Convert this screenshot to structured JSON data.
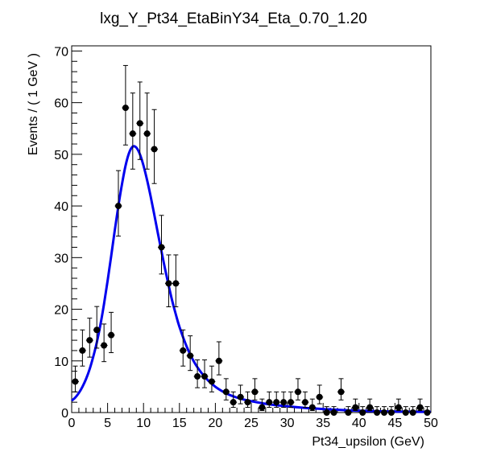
{
  "chart_data": {
    "type": "scatter",
    "title": "lxg_Y_Pt34_EtaBinY34_Eta_0.70_1.20",
    "xlabel": "Pt34_upsilon (GeV)",
    "ylabel": "Events / ( 1 GeV )",
    "xlim": [
      0,
      50
    ],
    "ylim": [
      0,
      71
    ],
    "x_ticks": [
      "0",
      "5",
      "10",
      "15",
      "20",
      "25",
      "30",
      "35",
      "40",
      "45",
      "50"
    ],
    "y_ticks": [
      "0",
      "10",
      "20",
      "30",
      "40",
      "50",
      "60",
      "70"
    ],
    "grid": false,
    "series": [
      {
        "kind": "data-points-with-errors",
        "color": "#000000",
        "x": [
          0.5,
          1.5,
          2.5,
          3.5,
          4.5,
          5.5,
          6.5,
          7.5,
          8.5,
          9.5,
          10.5,
          11.5,
          12.5,
          13.5,
          14.5,
          15.5,
          16.5,
          17.5,
          18.5,
          19.5,
          20.5,
          21.5,
          22.5,
          23.5,
          24.5,
          25.5,
          26.5,
          27.5,
          28.5,
          29.5,
          30.5,
          31.5,
          32.5,
          33.5,
          34.5,
          35.5,
          36.5,
          37.5,
          38.5,
          39.5,
          40.5,
          41.5,
          42.5,
          43.5,
          44.5,
          45.5,
          46.5,
          47.5,
          48.5,
          49.5
        ],
        "y": [
          6,
          12,
          14,
          16,
          13,
          15,
          40,
          59,
          54,
          56,
          54,
          51,
          32,
          25,
          25,
          12,
          11,
          7,
          7,
          6,
          10,
          4,
          2,
          3,
          2,
          4,
          1,
          2,
          2,
          2,
          2,
          4,
          2,
          1,
          3,
          0,
          0,
          4,
          0,
          1,
          0,
          1,
          0,
          0,
          0,
          1,
          0,
          0,
          1,
          0
        ]
      },
      {
        "kind": "fit-curve",
        "color": "#0000ee",
        "x": [
          0,
          0.5,
          1,
          1.5,
          2,
          2.5,
          3,
          3.5,
          4,
          4.5,
          5,
          5.5,
          6,
          6.5,
          7,
          7.5,
          8,
          8.5,
          9,
          9.5,
          10,
          10.5,
          11,
          11.5,
          12,
          12.5,
          13,
          13.5,
          14,
          14.5,
          15,
          16,
          17,
          18,
          19,
          20,
          21,
          22,
          23,
          24,
          25,
          27,
          30,
          33,
          36,
          40,
          45,
          50
        ],
        "y": [
          2.3,
          2.9,
          3.8,
          5,
          6.5,
          8.4,
          10.8,
          13.6,
          17,
          21,
          25.5,
          30.3,
          35.3,
          40,
          44.2,
          47.8,
          50.3,
          51.5,
          51.3,
          50,
          47.8,
          45,
          41.8,
          38.3,
          34.7,
          31.2,
          27.8,
          24.6,
          21.6,
          19,
          16.6,
          12.8,
          9.9,
          7.8,
          6.2,
          5,
          4.1,
          3.4,
          2.9,
          2.5,
          2.2,
          1.7,
          1.2,
          0.85,
          0.6,
          0.35,
          0.2,
          0.12
        ]
      }
    ]
  }
}
